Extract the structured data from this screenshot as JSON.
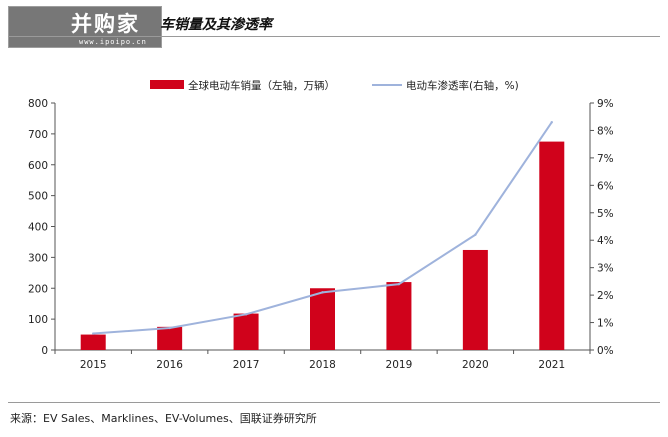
{
  "header": {
    "logo_text": "并购家",
    "logo_url": "www.ipoipo.cn",
    "title": "车销量及其渗透率"
  },
  "footer": {
    "source": "来源：EV Sales、Marklines、EV-Volumes、国联证券研究所"
  },
  "colors": {
    "bar": "#d0021b",
    "line": "#9fb3dc",
    "axis": "#555555",
    "text": "#222222"
  },
  "chart_data": {
    "type": "bar",
    "title": "",
    "categories": [
      "2015",
      "2016",
      "2017",
      "2018",
      "2019",
      "2020",
      "2021"
    ],
    "series": [
      {
        "name": "全球电动车销量（左轴，万辆）",
        "type": "bar",
        "axis": "left",
        "values": [
          50,
          75,
          118,
          200,
          220,
          324,
          675
        ]
      },
      {
        "name": "电动车渗透率(右轴，%)",
        "type": "line",
        "axis": "right",
        "values": [
          0.6,
          0.8,
          1.3,
          2.1,
          2.4,
          4.2,
          8.3
        ]
      }
    ],
    "y_left": {
      "ylim": [
        0,
        800
      ],
      "ticks": [
        "0",
        "100",
        "200",
        "300",
        "400",
        "500",
        "600",
        "700",
        "800"
      ]
    },
    "y_right": {
      "ylim": [
        0,
        9
      ],
      "ticks": [
        "0%",
        "1%",
        "2%",
        "3%",
        "4%",
        "5%",
        "6%",
        "7%",
        "8%",
        "9%"
      ]
    },
    "legend_position": "top-center",
    "grid": false
  }
}
